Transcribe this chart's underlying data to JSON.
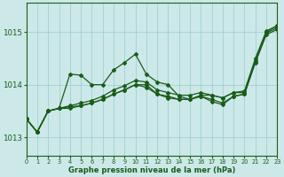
{
  "bg_color": "#cce8e8",
  "grid_color": "#99cccc",
  "line_color": "#1a5c1a",
  "text_color": "#1a5c1a",
  "xlabel": "Graphe pression niveau de la mer (hPa)",
  "xlim": [
    0,
    23
  ],
  "ylim": [
    1012.65,
    1015.55
  ],
  "yticks": [
    1013,
    1014,
    1015
  ],
  "xticks": [
    0,
    1,
    2,
    3,
    4,
    5,
    6,
    7,
    8,
    9,
    10,
    11,
    12,
    13,
    14,
    15,
    16,
    17,
    18,
    19,
    20,
    21,
    22,
    23
  ],
  "series": [
    [
      1013.35,
      1013.1,
      1013.5,
      1013.55,
      1014.2,
      1014.18,
      1014.0,
      1014.0,
      1014.28,
      1014.42,
      1014.58,
      1014.2,
      1014.05,
      1014.0,
      1013.78,
      1013.72,
      1013.8,
      1013.8,
      1013.75,
      1013.85,
      1013.85,
      1014.45,
      1015.0,
      1015.12
    ],
    [
      1013.35,
      1013.1,
      1013.5,
      1013.55,
      1013.55,
      1013.6,
      1013.65,
      1013.72,
      1013.82,
      1013.9,
      1014.0,
      1014.0,
      1013.82,
      1013.75,
      1013.72,
      1013.72,
      1013.78,
      1013.68,
      1013.62,
      1013.78,
      1013.82,
      1014.42,
      1014.95,
      1015.05
    ],
    [
      1013.35,
      1013.1,
      1013.5,
      1013.55,
      1013.58,
      1013.6,
      1013.65,
      1013.72,
      1013.82,
      1013.9,
      1014.0,
      1013.95,
      1013.82,
      1013.78,
      1013.72,
      1013.72,
      1013.78,
      1013.72,
      1013.65,
      1013.78,
      1013.82,
      1014.45,
      1014.98,
      1015.08
    ],
    [
      1013.35,
      1013.1,
      1013.5,
      1013.55,
      1013.6,
      1013.65,
      1013.7,
      1013.78,
      1013.9,
      1013.98,
      1014.08,
      1014.05,
      1013.9,
      1013.85,
      1013.8,
      1013.8,
      1013.85,
      1013.8,
      1013.75,
      1013.85,
      1013.88,
      1014.5,
      1015.02,
      1015.12
    ]
  ],
  "fig_width": 3.2,
  "fig_height": 2.0,
  "dpi": 100
}
